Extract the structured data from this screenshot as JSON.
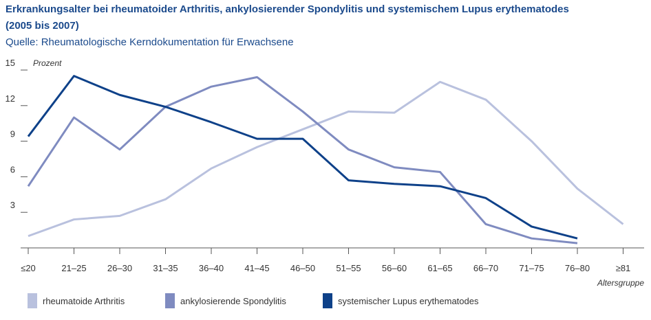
{
  "chart_data": {
    "type": "line",
    "title": "Erkrankungsalter bei rheumatoider Arthritis, ankylosierender Spondylitis und systemischem Lupus erythematodes",
    "subtitle": "(2005 bis 2007)",
    "source": "Quelle: Rheumatologische Kerndokumentation für Erwachsene",
    "y_label": "Prozent",
    "x_label": "Altersgruppe",
    "categories": [
      "≤20",
      "21–25",
      "26–30",
      "31–35",
      "36–40",
      "41–45",
      "46–50",
      "51–55",
      "56–60",
      "61–65",
      "66–70",
      "71–75",
      "76–80",
      "≥81"
    ],
    "ylim": [
      0,
      15
    ],
    "yticks": [
      3,
      6,
      9,
      12,
      15
    ],
    "series": [
      {
        "name": "rheumatoide Arthritis",
        "color": "#b9c1de",
        "values": [
          1.0,
          2.4,
          2.7,
          4.1,
          6.7,
          8.5,
          10.0,
          11.5,
          11.4,
          14.0,
          12.5,
          9.0,
          5.0,
          2.0
        ]
      },
      {
        "name": "ankylosierende Spondylitis",
        "color": "#7f8bc0",
        "values": [
          5.2,
          11.0,
          8.3,
          11.9,
          13.6,
          14.4,
          11.5,
          8.3,
          6.8,
          6.4,
          2.0,
          0.8,
          0.4,
          null
        ]
      },
      {
        "name": "systemischer Lupus erythematodes",
        "color": "#0e4189",
        "values": [
          9.4,
          14.5,
          12.9,
          11.9,
          10.6,
          9.2,
          9.2,
          5.7,
          5.4,
          5.2,
          4.2,
          1.8,
          0.8,
          null
        ]
      }
    ]
  }
}
